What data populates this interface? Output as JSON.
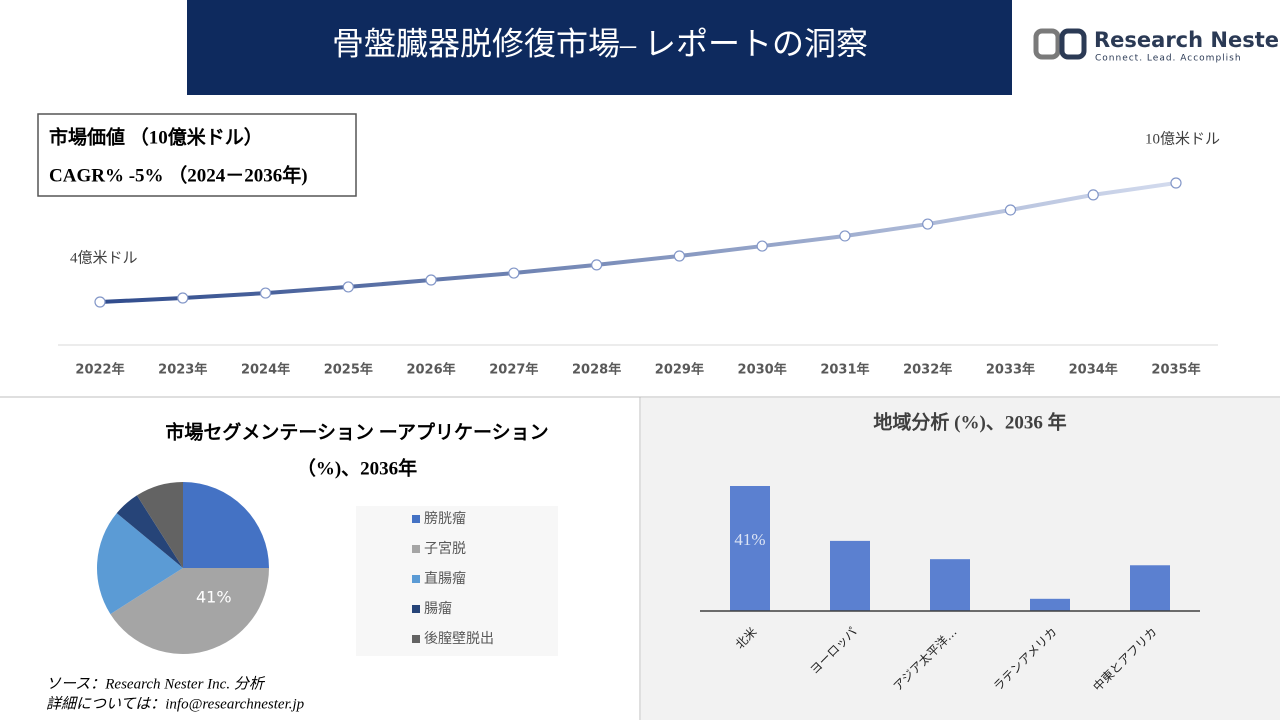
{
  "header": {
    "title": "骨盤臓器脱修復市場– レポートの洞察",
    "logo_name": "Research Nester",
    "logo_tagline": "Connect. Lead. Accomplish"
  },
  "market_box": {
    "line1": "市場価値 （10億米ドル）",
    "line2": "CAGR% -5% （2024－2036年)"
  },
  "chart_data": [
    {
      "type": "line",
      "categories": [
        "2022年",
        "2023年",
        "2024年",
        "2025年",
        "2026年",
        "2027年",
        "2028年",
        "2029年",
        "2030年",
        "2031年",
        "2032年",
        "2033年",
        "2034年",
        "2035年"
      ],
      "values": [
        4,
        4.2,
        4.45,
        4.76,
        5.11,
        5.46,
        5.87,
        6.32,
        6.82,
        7.33,
        7.93,
        8.64,
        9.4,
        10
      ],
      "value_labels": [
        "4億米ドル",
        null,
        null,
        null,
        null,
        null,
        null,
        null,
        null,
        null,
        null,
        null,
        null,
        "10億米ドル"
      ],
      "colors": [
        "#2f4b8c",
        "#d3dbee"
      ]
    },
    {
      "type": "pie",
      "title_lines": [
        "市場セグメンテーション ーアプリケーション",
        "（%)、2036年"
      ],
      "categories": [
        "膀胱瘤",
        "子宮脱",
        "直腸瘤",
        "腸瘤",
        "後膣壁脱出"
      ],
      "values": [
        25,
        41,
        20,
        5,
        9
      ],
      "value_labels": [
        null,
        "41%",
        null,
        null,
        null
      ],
      "colors": [
        "#4472c4",
        "#a5a5a5",
        "#5b9bd5",
        "#264478",
        "#636363"
      ]
    },
    {
      "type": "bar",
      "title": "地域分析 (%)、2036 年",
      "categories": [
        "北米",
        "ヨーロッパ",
        "アジア太平洋…",
        "ラテンアメリカ",
        "中東とアフリカ"
      ],
      "values": [
        41,
        23,
        17,
        4,
        15
      ],
      "value_labels": [
        "41%",
        null,
        null,
        null,
        null
      ],
      "color": "#5b80d0"
    }
  ],
  "footer": {
    "source": "ソース：Research Nester Inc. 分析",
    "contact": "詳細については：info@researchnester.jp"
  }
}
